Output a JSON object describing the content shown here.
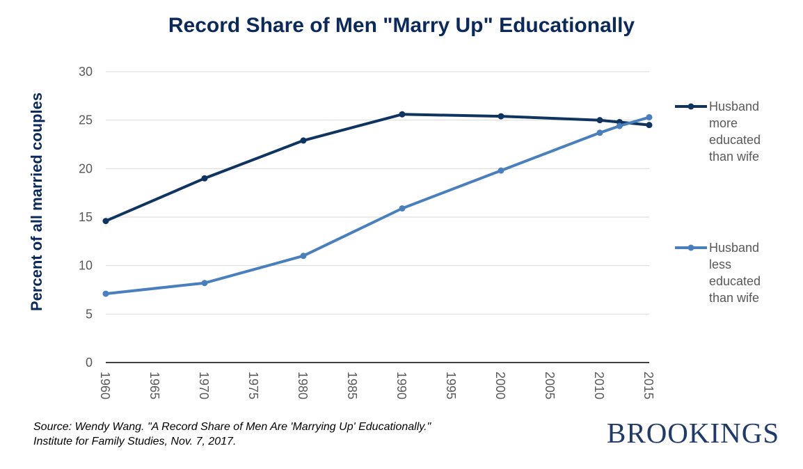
{
  "chart_data": {
    "type": "line",
    "title": "Record Share of Men \"Marry Up\" Educationally",
    "xlabel": "",
    "ylabel": "Percent of all married couples",
    "xlim": [
      1960,
      2015
    ],
    "ylim": [
      0,
      30
    ],
    "x_ticks": [
      "1960",
      "1965",
      "1970",
      "1975",
      "1980",
      "1985",
      "1990",
      "1995",
      "2000",
      "2005",
      "2010",
      "2015"
    ],
    "y_ticks": [
      "0",
      "5",
      "10",
      "15",
      "20",
      "25",
      "30"
    ],
    "grid": true,
    "legend_position": "right",
    "series": [
      {
        "name": "Husband more educated than wife",
        "legend_lines": [
          "Husband",
          "more",
          "educated",
          "than wife"
        ],
        "color": "#0f3460",
        "x": [
          1960,
          1970,
          1980,
          1990,
          2000,
          2010,
          2012,
          2015
        ],
        "values": [
          14.6,
          19.0,
          22.9,
          25.6,
          25.4,
          25.0,
          24.8,
          24.5
        ]
      },
      {
        "name": "Husband less educated than wife",
        "legend_lines": [
          "Husband",
          "less",
          "educated",
          "than wife"
        ],
        "color": "#4a7fbd",
        "x": [
          1960,
          1970,
          1980,
          1990,
          2000,
          2010,
          2012,
          2015
        ],
        "values": [
          7.1,
          8.2,
          11.0,
          15.9,
          19.8,
          23.7,
          24.4,
          25.3
        ]
      }
    ]
  },
  "source": {
    "line1": "Source: Wendy Wang. \"A Record Share of Men Are 'Marrying Up' Educationally.\"",
    "line2": "Institute for Family Studies, Nov. 7, 2017."
  },
  "brand": {
    "name": "BROOKINGS",
    "color": "#1f3a6b"
  }
}
